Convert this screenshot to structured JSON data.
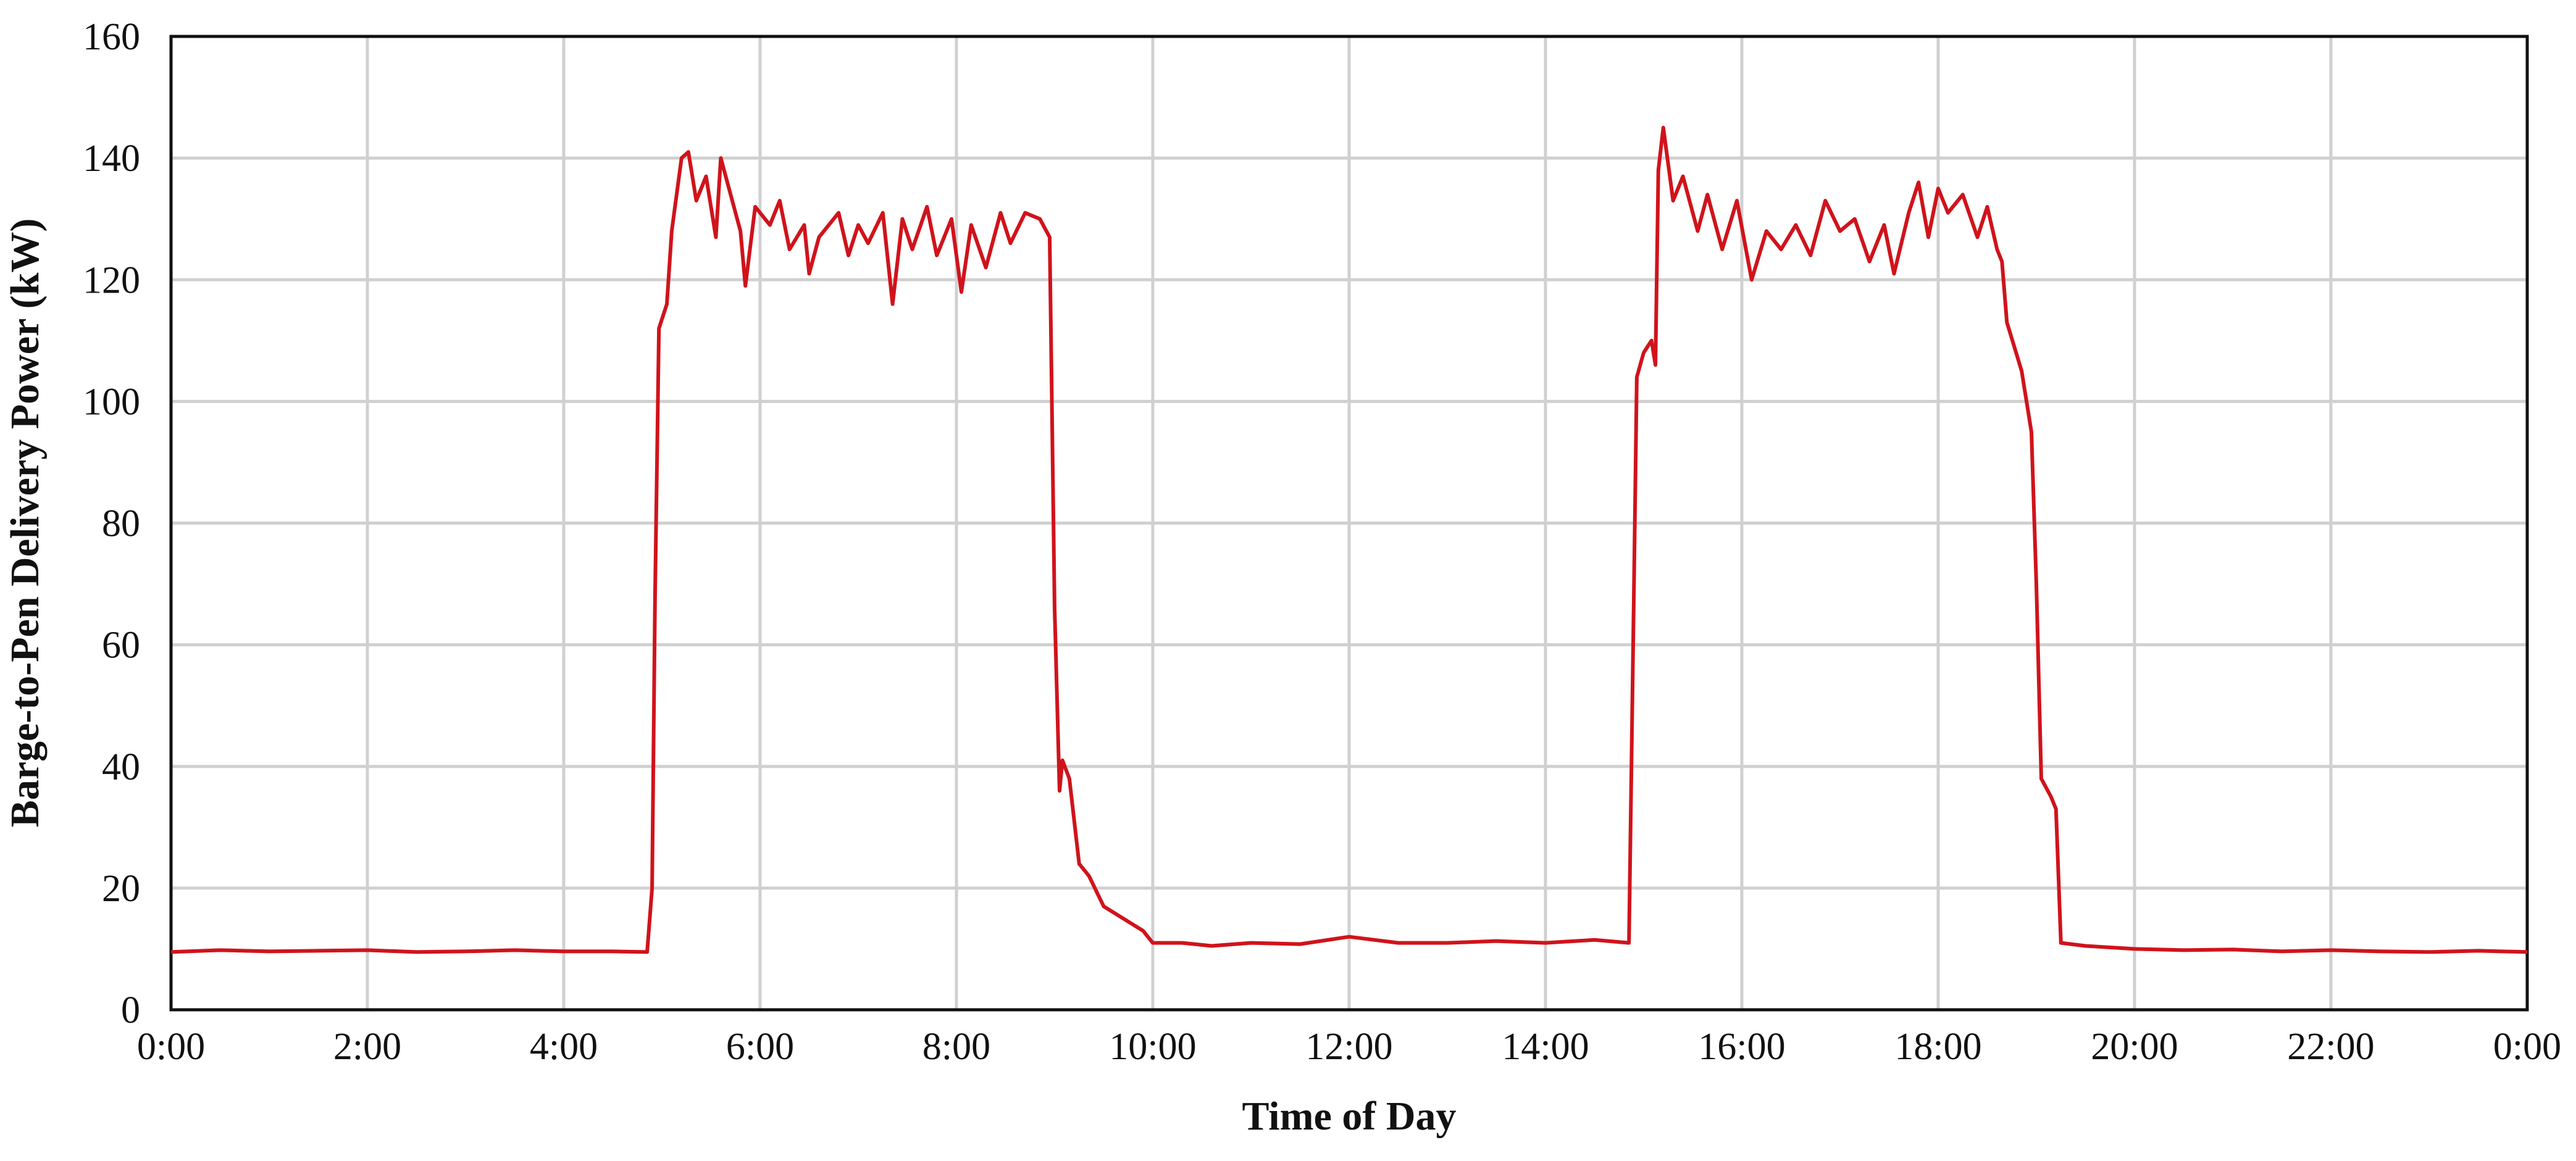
{
  "chart_data": {
    "type": "line",
    "ylabel": "Barge-to-Pen Delivery Power (kW)",
    "xlabel": "Time of Day",
    "color": "#d0131b",
    "grid": true,
    "xlim": [
      0,
      24
    ],
    "xticks": [
      {
        "value": 0,
        "label": "0:00"
      },
      {
        "value": 2,
        "label": "2:00"
      },
      {
        "value": 4,
        "label": "4:00"
      },
      {
        "value": 6,
        "label": "6:00"
      },
      {
        "value": 8,
        "label": "8:00"
      },
      {
        "value": 10,
        "label": "10:00"
      },
      {
        "value": 12,
        "label": "12:00"
      },
      {
        "value": 14,
        "label": "14:00"
      },
      {
        "value": 16,
        "label": "16:00"
      },
      {
        "value": 18,
        "label": "18:00"
      },
      {
        "value": 20,
        "label": "20:00"
      },
      {
        "value": 22,
        "label": "22:00"
      },
      {
        "value": 24,
        "label": "0:00"
      }
    ],
    "ylim": [
      0,
      160
    ],
    "yticks": [
      0,
      20,
      40,
      60,
      80,
      100,
      120,
      140,
      160
    ],
    "x": [
      0,
      0.5,
      1,
      1.5,
      2,
      2.5,
      3,
      3.5,
      4,
      4.5,
      4.85,
      4.9,
      4.93,
      4.97,
      5.05,
      5.1,
      5.2,
      5.27,
      5.35,
      5.45,
      5.55,
      5.6,
      5.7,
      5.8,
      5.85,
      5.95,
      6.1,
      6.2,
      6.3,
      6.45,
      6.5,
      6.6,
      6.8,
      6.9,
      7.0,
      7.1,
      7.25,
      7.35,
      7.45,
      7.55,
      7.7,
      7.8,
      7.95,
      8.05,
      8.15,
      8.3,
      8.45,
      8.55,
      8.7,
      8.85,
      8.95,
      9.0,
      9.05,
      9.08,
      9.15,
      9.25,
      9.35,
      9.5,
      9.7,
      9.9,
      10.0,
      10.3,
      10.6,
      11,
      11.5,
      12,
      12.5,
      13,
      13.5,
      14,
      14.5,
      14.85,
      14.9,
      14.93,
      15.0,
      15.08,
      15.12,
      15.15,
      15.2,
      15.3,
      15.4,
      15.55,
      15.65,
      15.8,
      15.95,
      16.1,
      16.25,
      16.4,
      16.55,
      16.7,
      16.85,
      17.0,
      17.15,
      17.3,
      17.45,
      17.55,
      17.7,
      17.8,
      17.9,
      18.0,
      18.1,
      18.25,
      18.4,
      18.5,
      18.6,
      18.65,
      18.7,
      18.85,
      18.95,
      19.0,
      19.05,
      19.15,
      19.2,
      19.25,
      19.5,
      20,
      20.5,
      21,
      21.5,
      22,
      22.5,
      23,
      23.5,
      24
    ],
    "values": [
      9.5,
      9.8,
      9.6,
      9.7,
      9.8,
      9.5,
      9.6,
      9.8,
      9.6,
      9.6,
      9.5,
      20,
      68,
      112,
      116,
      128,
      140,
      141,
      133,
      137,
      127,
      140,
      134,
      128,
      119,
      132,
      129,
      133,
      125,
      129,
      121,
      127,
      131,
      124,
      129,
      126,
      131,
      116,
      130,
      125,
      132,
      124,
      130,
      118,
      129,
      122,
      131,
      126,
      131,
      130,
      127,
      66,
      36,
      41,
      38,
      24,
      22,
      17,
      15,
      13,
      11,
      11,
      10.5,
      11,
      10.8,
      12,
      11,
      11,
      11.3,
      11,
      11.5,
      11,
      68,
      104,
      108,
      110,
      106,
      138,
      145,
      133,
      137,
      128,
      134,
      125,
      133,
      120,
      128,
      125,
      129,
      124,
      133,
      128,
      130,
      123,
      129,
      121,
      131,
      136,
      127,
      135,
      131,
      134,
      127,
      132,
      125,
      123,
      113,
      105,
      95,
      70,
      38,
      35,
      33,
      11,
      10.5,
      10,
      9.8,
      9.9,
      9.6,
      9.8,
      9.6,
      9.5,
      9.7,
      9.5
    ]
  }
}
